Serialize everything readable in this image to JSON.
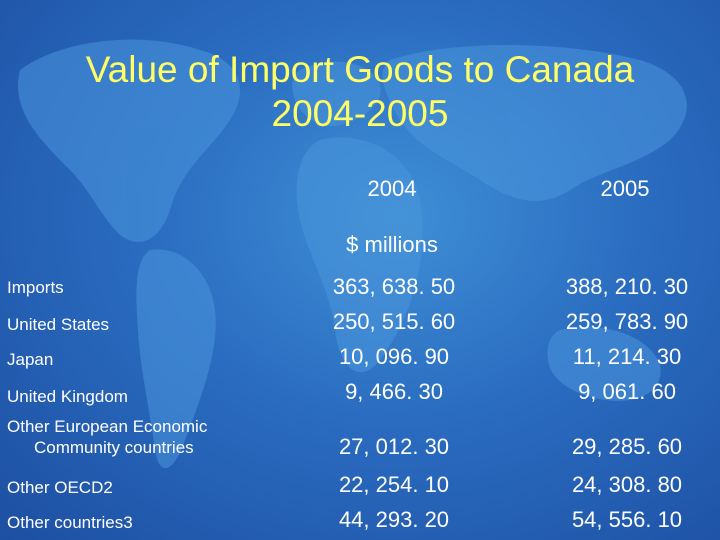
{
  "title": {
    "line1": "Value of Import Goods to Canada",
    "line2": "2004-2005"
  },
  "columns": {
    "year1": "2004",
    "year2": "2005",
    "unit": "$ millions"
  },
  "rows": [
    {
      "label": "Imports",
      "v2004": "363, 638. 50",
      "v2005": "388, 210. 30"
    },
    {
      "label": "United States",
      "v2004": "250, 515. 60",
      "v2005": "259, 783. 90"
    },
    {
      "label": "Japan",
      "v2004": "10, 096. 90",
      "v2005": "11, 214. 30"
    },
    {
      "label": "United Kingdom",
      "v2004": "9, 466. 30",
      "v2005": "9, 061. 60"
    },
    {
      "label_line1": "Other European Economic",
      "label_line2": "Community countries",
      "v2004": "27, 012. 30",
      "v2005": "29, 285. 60"
    },
    {
      "label": "Other OECD2",
      "v2004": "22, 254. 10",
      "v2005": "24, 308. 80"
    },
    {
      "label": "Other countries3",
      "v2004": "44, 293. 20",
      "v2005": "54, 556. 10"
    }
  ],
  "colors": {
    "background": "#2a6cc0",
    "title": "#ffff66",
    "text": "#ffffff"
  }
}
